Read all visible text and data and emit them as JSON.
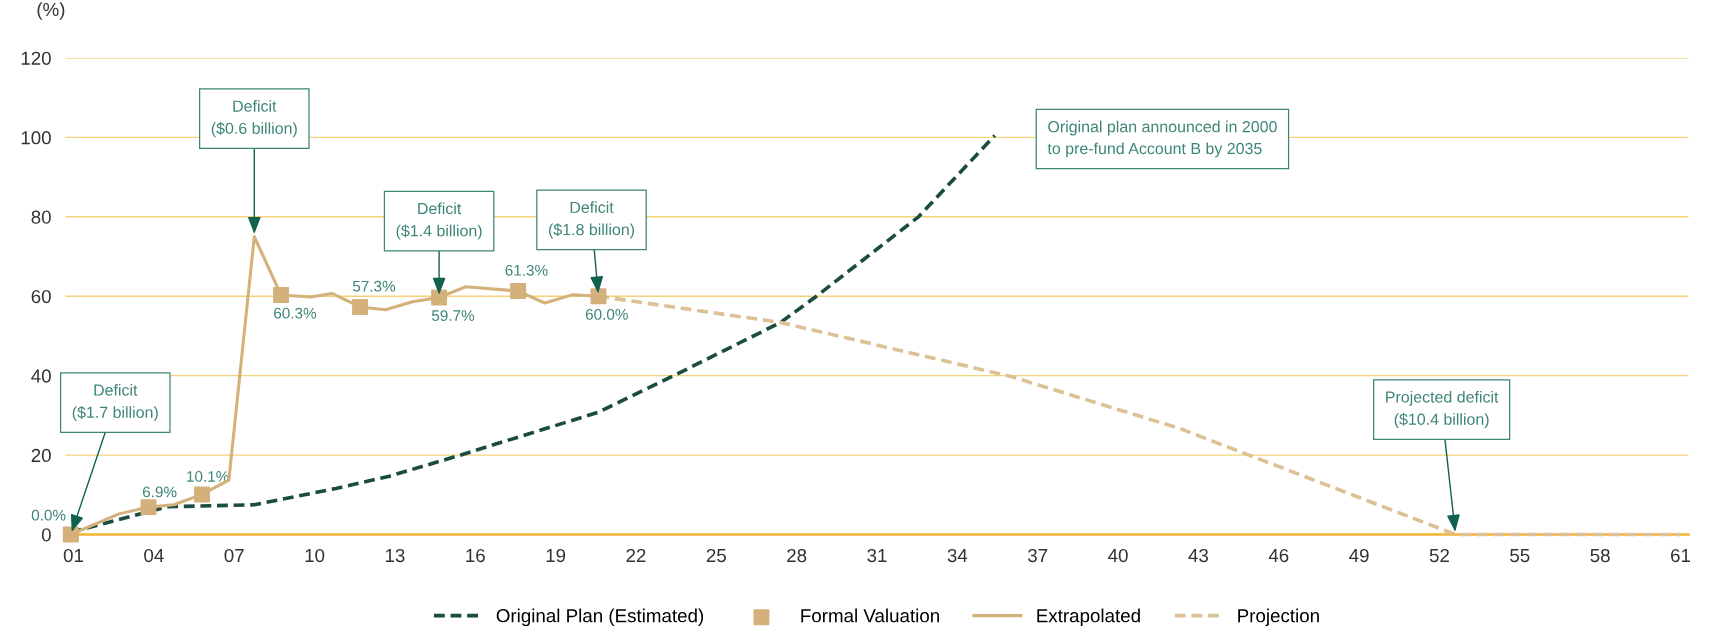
{
  "chart_data": {
    "type": "line",
    "ylabel": "(%)",
    "xlim": [
      0.7,
      61.3
    ],
    "ylim": [
      0,
      120
    ],
    "yticks": [
      0,
      20,
      40,
      60,
      80,
      100,
      120
    ],
    "xticks": [
      {
        "value": 1,
        "label": "01"
      },
      {
        "value": 4,
        "label": "04"
      },
      {
        "value": 7,
        "label": "07"
      },
      {
        "value": 10,
        "label": "10"
      },
      {
        "value": 13,
        "label": "13"
      },
      {
        "value": 16,
        "label": "16"
      },
      {
        "value": 19,
        "label": "19"
      },
      {
        "value": 22,
        "label": "22"
      },
      {
        "value": 25,
        "label": "25"
      },
      {
        "value": 28,
        "label": "28"
      },
      {
        "value": 31,
        "label": "31"
      },
      {
        "value": 34,
        "label": "34"
      },
      {
        "value": 37,
        "label": "37"
      },
      {
        "value": 40,
        "label": "40"
      },
      {
        "value": 43,
        "label": "43"
      },
      {
        "value": 46,
        "label": "46"
      },
      {
        "value": 49,
        "label": "49"
      },
      {
        "value": 52,
        "label": "52"
      },
      {
        "value": 55,
        "label": "55"
      },
      {
        "value": 58,
        "label": "58"
      },
      {
        "value": 61,
        "label": "61"
      }
    ],
    "grid": "y",
    "legend": "bottom",
    "series": [
      {
        "name": "Original Plan (Estimated)",
        "type": "line",
        "line_style": "dashed",
        "marker": "none",
        "color": "#1b4d3e",
        "x": [
          0.9,
          4.5,
          7.75,
          10.8,
          12.8,
          15.3,
          20.6,
          23.5,
          27.4,
          28.7,
          32.55,
          35.4
        ],
        "values": [
          0.6,
          7,
          7.5,
          11.6,
          14.7,
          19.7,
          30.8,
          40.3,
          53.4,
          59.8,
          80,
          100.5
        ]
      },
      {
        "name": "Formal Valuation",
        "type": "scatter",
        "marker": "square",
        "color": "#d4b07a",
        "x": [
          0.9,
          3.8,
          5.8,
          8.75,
          11.7,
          14.65,
          17.6,
          20.6
        ],
        "values": [
          0,
          6.9,
          10.1,
          60.3,
          57.3,
          59.7,
          61.3,
          60.0
        ],
        "value_labels": [
          "0.0%",
          "6.9%",
          "10.1%",
          "60.3%",
          "57.3%",
          "59.7%",
          "61.3%",
          "60.0%"
        ]
      },
      {
        "name": "Extrapolated",
        "line_style": "solid",
        "marker": "none",
        "color": "#d4b07a",
        "x": [
          0.9,
          2.7,
          3.8,
          4.75,
          5.8,
          6.8,
          7.75,
          8.75,
          9.85,
          10.65,
          11.7,
          12.65,
          13.65,
          14.65,
          15.65,
          17.6,
          18.6,
          19.65,
          20.6
        ],
        "values": [
          0,
          5.2,
          6.9,
          7.5,
          10.1,
          13.7,
          75,
          60.3,
          59.8,
          60.7,
          57.3,
          56.6,
          58.6,
          59.7,
          62.4,
          61.3,
          58.3,
          60.4,
          60.0
        ]
      },
      {
        "name": "Projection",
        "line_style": "dashed",
        "marker": "none",
        "color": "#dcc195",
        "x": [
          20.6,
          27.4,
          36.0,
          42.3,
          52.6,
          61
        ],
        "values": [
          60.0,
          53.4,
          39.8,
          26.7,
          0,
          0
        ]
      }
    ],
    "annotations": [
      {
        "text": "Deficit\n($1.7 billion)",
        "x": 0.9,
        "y": 0
      },
      {
        "text": "Deficit\n($0.6 billion)",
        "x": 7.75,
        "y": 75
      },
      {
        "text": "Deficit\n($1.4 billion)",
        "x": 14.65,
        "y": 59.7
      },
      {
        "text": "Deficit\n($1.8 billion)",
        "x": 20.6,
        "y": 60.0
      },
      "Original plan announced in 2000\nto pre-fund Account B by 2035",
      {
        "text": "Projected deficit\n($10.4 billion)",
        "x": 52.6,
        "y": 0
      }
    ]
  }
}
